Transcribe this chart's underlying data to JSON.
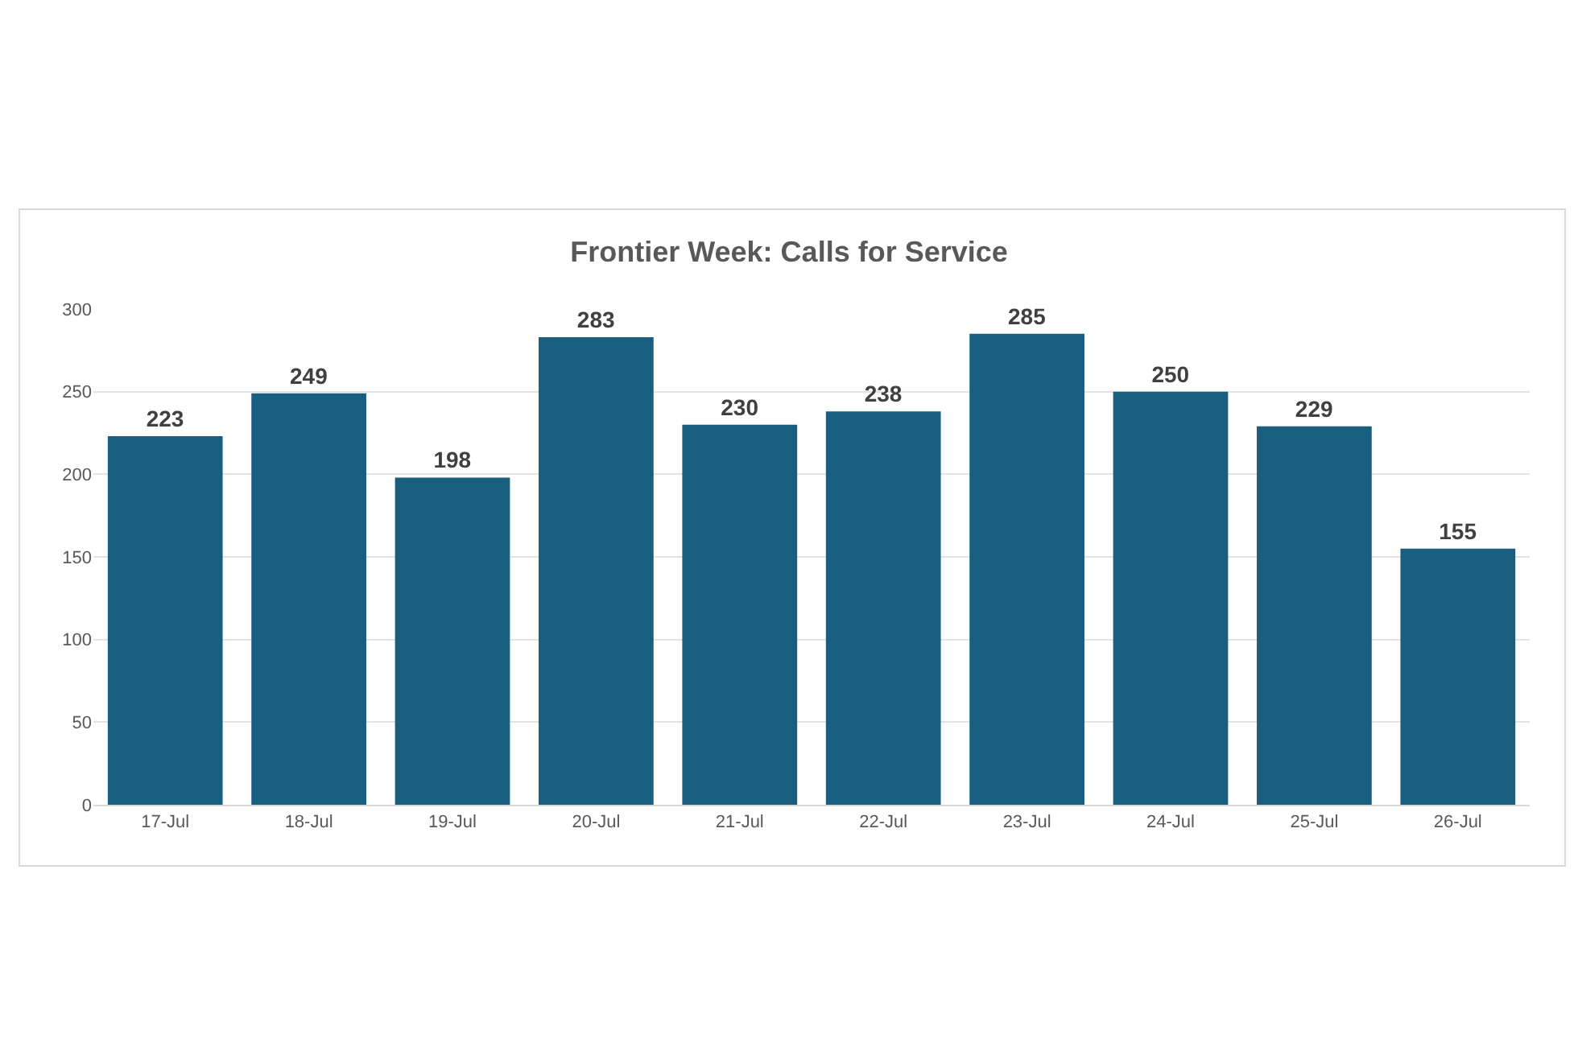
{
  "chart_data": {
    "type": "bar",
    "title": "Frontier Week: Calls for Service",
    "categories": [
      "17-Jul",
      "18-Jul",
      "19-Jul",
      "20-Jul",
      "21-Jul",
      "22-Jul",
      "23-Jul",
      "24-Jul",
      "25-Jul",
      "26-Jul"
    ],
    "values": [
      223,
      249,
      198,
      283,
      230,
      238,
      285,
      250,
      229,
      155
    ],
    "color": "#175e7f",
    "ylim": [
      0,
      300
    ],
    "yticks": [
      0,
      50,
      100,
      150,
      200,
      250,
      300
    ],
    "grid": "y",
    "data_labels": true,
    "legend": false
  }
}
